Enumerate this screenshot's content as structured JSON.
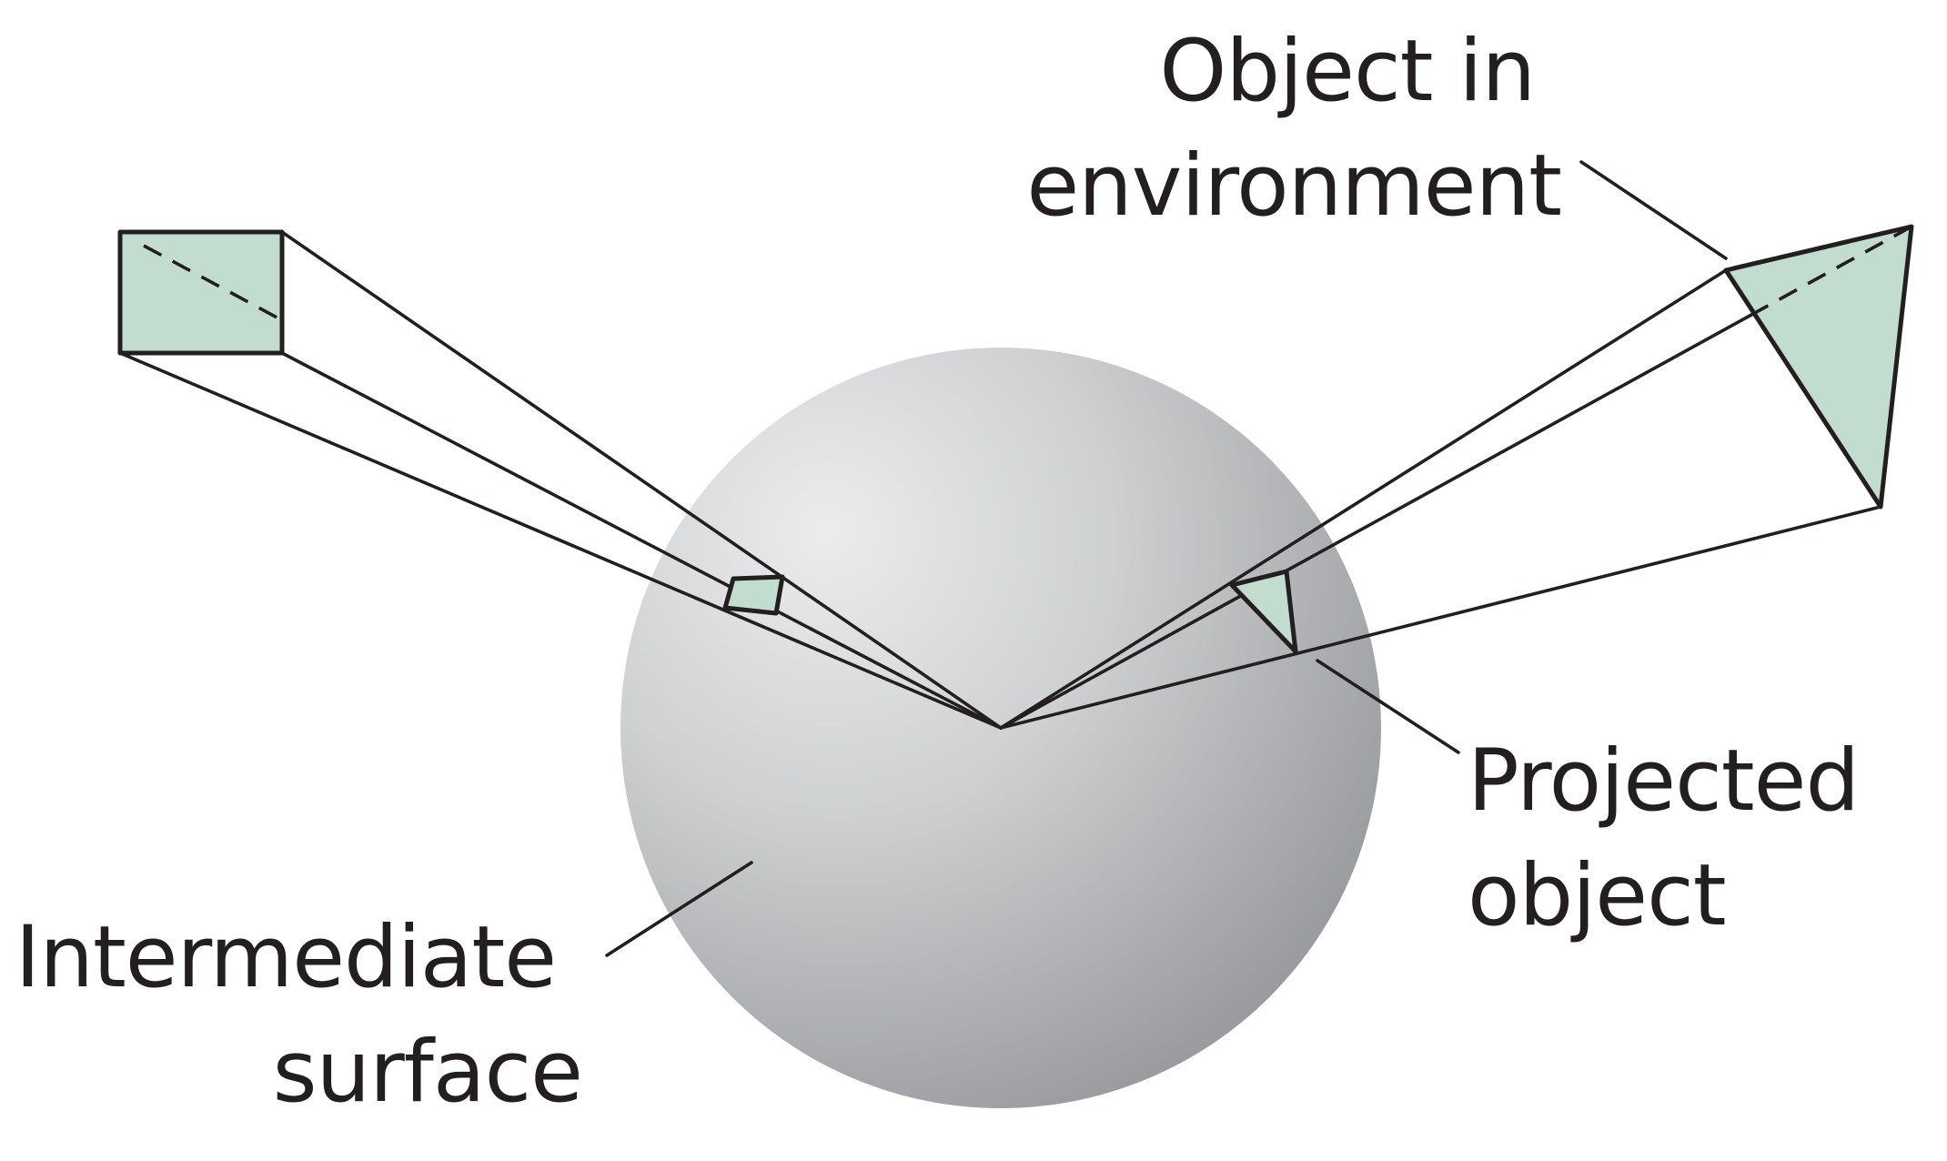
{
  "labels": {
    "object_in_environment": [
      "Object in",
      "environment"
    ],
    "projected_object": [
      "Projected",
      "object"
    ],
    "intermediate_surface": [
      "Intermediate",
      "surface"
    ]
  },
  "colors": {
    "object_fill": "#c2ddd0",
    "line": "#231f20",
    "sphere_highlight": "#ececee",
    "sphere_shadow": "#9a9b9e",
    "background": "#ffffff"
  }
}
